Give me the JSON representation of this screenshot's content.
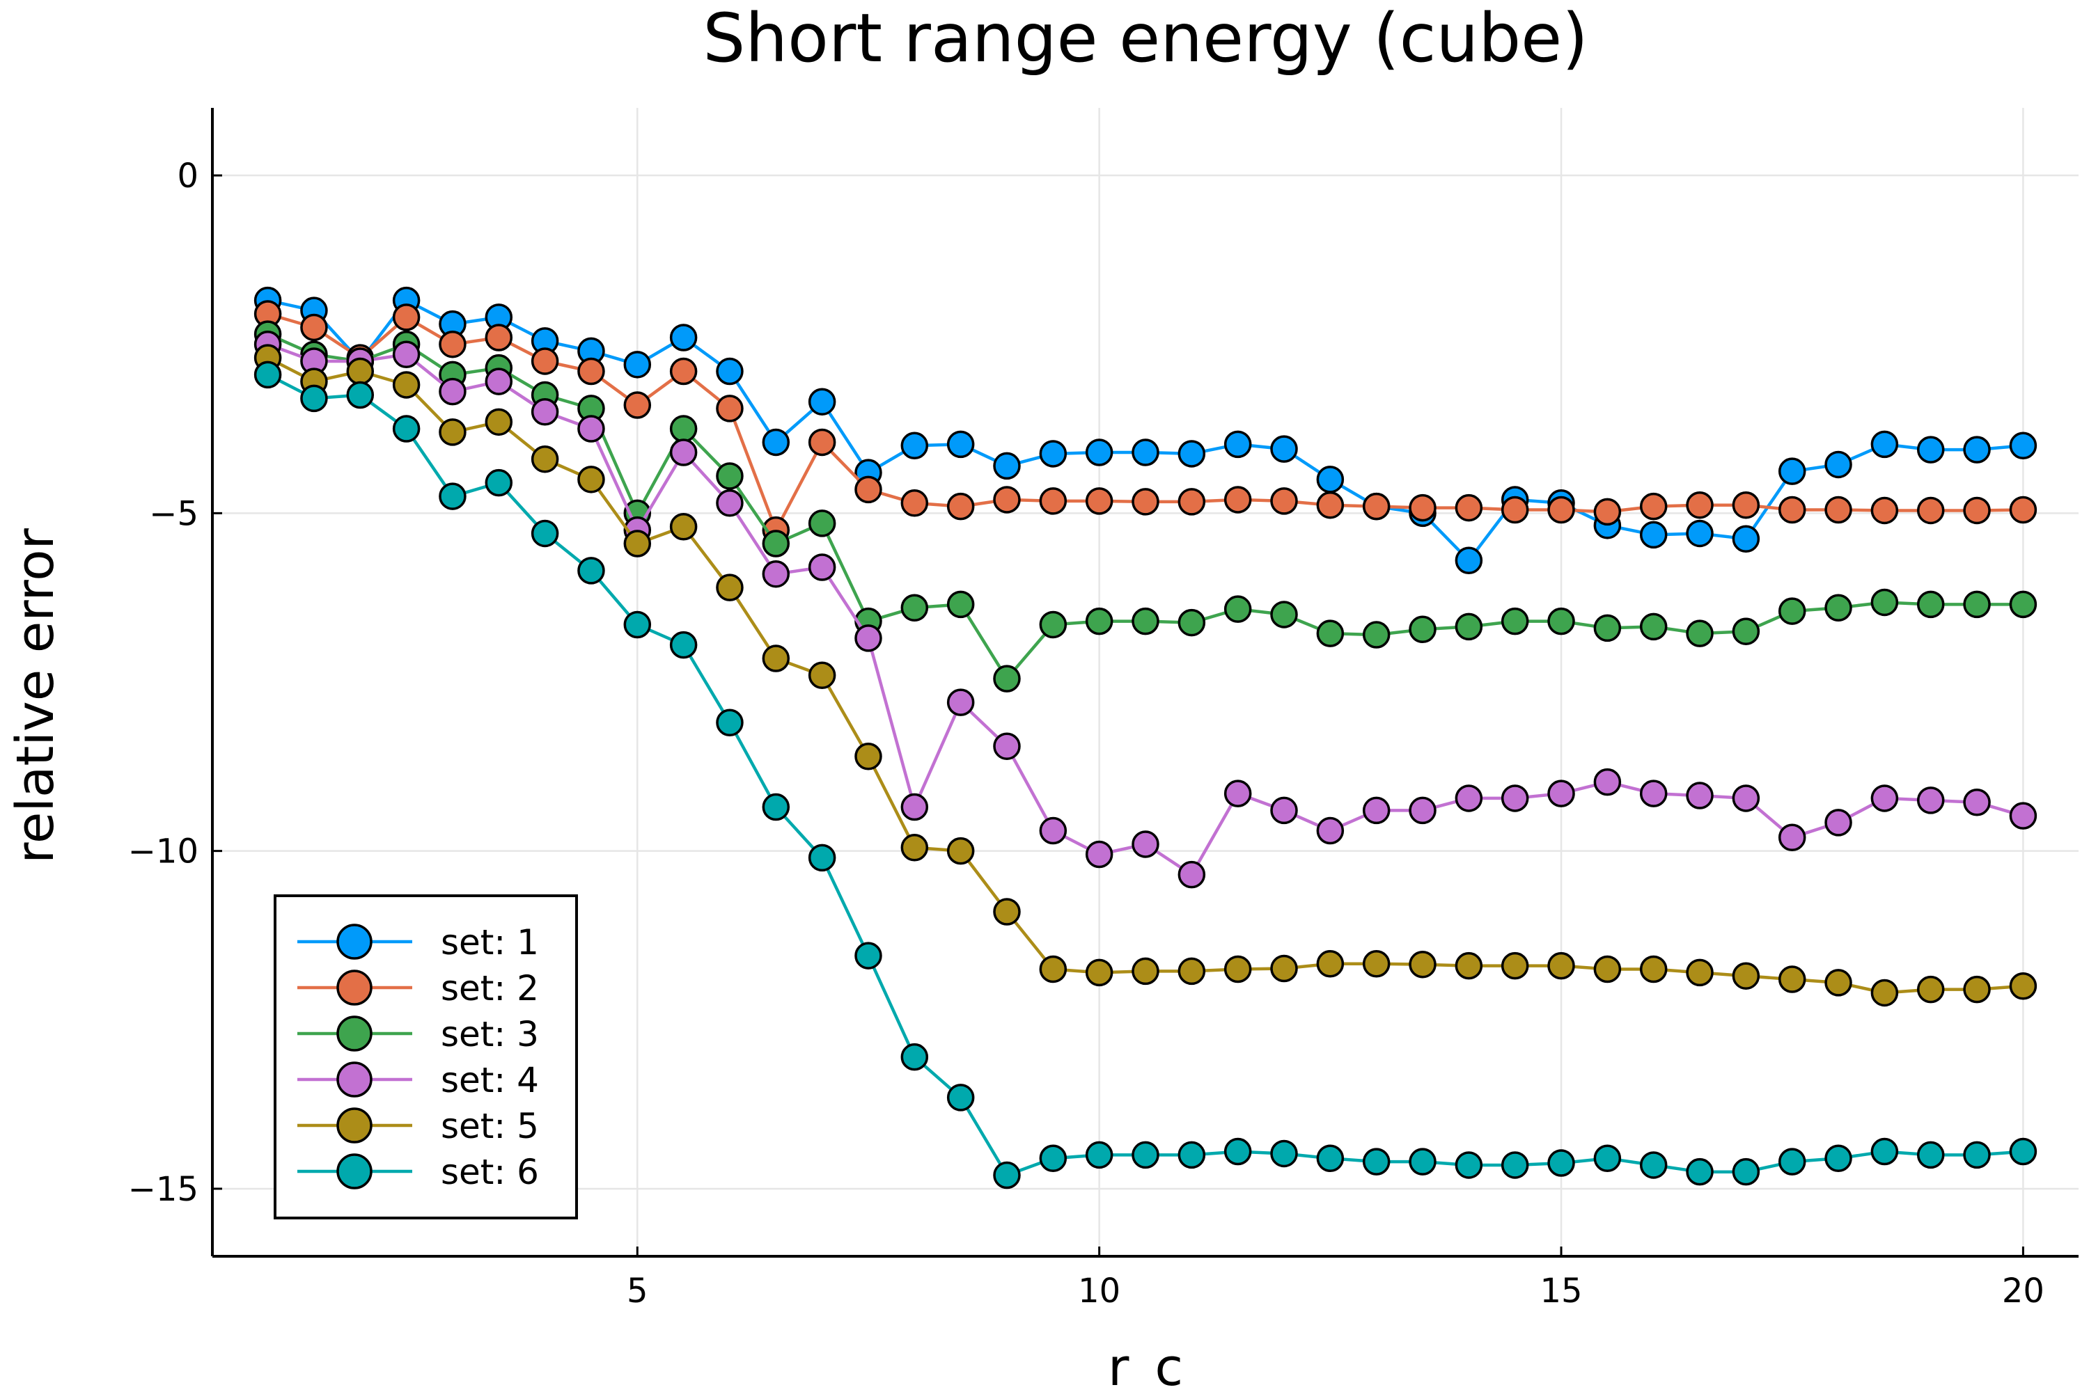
{
  "chart_data": {
    "type": "line",
    "title": "Short range energy (cube)",
    "xlabel": "r_c",
    "ylabel": "relative error",
    "xlim": [
      0.4,
      20.6
    ],
    "ylim": [
      -16,
      1
    ],
    "xticks": [
      5,
      10,
      15,
      20
    ],
    "xtick_labels": [
      "5",
      "10",
      "15",
      "20"
    ],
    "yticks": [
      0,
      -5,
      -10,
      -15
    ],
    "ytick_labels": [
      "0",
      "−5",
      "−10",
      "−15"
    ],
    "grid": true,
    "legend_position": "bottom-left",
    "markers": true,
    "x": [
      1.0,
      1.5,
      2.0,
      2.5,
      3.0,
      3.5,
      4.0,
      4.5,
      5.0,
      5.5,
      6.0,
      6.5,
      7.0,
      7.5,
      8.0,
      8.5,
      9.0,
      9.5,
      10.0,
      10.5,
      11.0,
      11.5,
      12.0,
      12.5,
      13.0,
      13.5,
      14.0,
      14.5,
      15.0,
      15.5,
      16.0,
      16.5,
      17.0,
      17.5,
      18.0,
      18.5,
      19.0,
      19.5,
      20.0
    ],
    "series": [
      {
        "name": "set: 1",
        "color": "#009AFA",
        "values": [
          -1.85,
          -2.0,
          -2.75,
          -1.85,
          -2.2,
          -2.1,
          -2.45,
          -2.6,
          -2.8,
          -2.4,
          -2.9,
          -3.95,
          -3.35,
          -4.4,
          -4.0,
          -3.98,
          -4.3,
          -4.12,
          -4.1,
          -4.1,
          -4.12,
          -3.98,
          -4.05,
          -4.5,
          -4.9,
          -5.0,
          -5.7,
          -4.8,
          -4.85,
          -5.18,
          -5.32,
          -5.3,
          -5.38,
          -4.38,
          -4.28,
          -3.98,
          -4.06,
          -4.06,
          -4.0
        ]
      },
      {
        "name": "set: 2",
        "color": "#E36F47",
        "values": [
          -2.05,
          -2.25,
          -2.7,
          -2.1,
          -2.5,
          -2.4,
          -2.75,
          -2.9,
          -3.4,
          -2.9,
          -3.45,
          -5.25,
          -3.95,
          -4.65,
          -4.85,
          -4.9,
          -4.8,
          -4.82,
          -4.82,
          -4.83,
          -4.83,
          -4.8,
          -4.82,
          -4.88,
          -4.9,
          -4.92,
          -4.92,
          -4.95,
          -4.95,
          -4.98,
          -4.9,
          -4.88,
          -4.88,
          -4.95,
          -4.95,
          -4.96,
          -4.96,
          -4.96,
          -4.95
        ]
      },
      {
        "name": "set: 3",
        "color": "#3EA44E",
        "values": [
          -2.35,
          -2.65,
          -2.75,
          -2.5,
          -2.95,
          -2.85,
          -3.25,
          -3.45,
          -5.0,
          -3.75,
          -4.45,
          -5.45,
          -5.15,
          -6.6,
          -6.4,
          -6.35,
          -7.45,
          -6.65,
          -6.6,
          -6.6,
          -6.62,
          -6.42,
          -6.5,
          -6.78,
          -6.8,
          -6.72,
          -6.68,
          -6.6,
          -6.6,
          -6.7,
          -6.68,
          -6.78,
          -6.75,
          -6.45,
          -6.4,
          -6.32,
          -6.35,
          -6.35,
          -6.35
        ]
      },
      {
        "name": "set: 4",
        "color": "#C271D2",
        "values": [
          -2.5,
          -2.75,
          -2.75,
          -2.65,
          -3.2,
          -3.05,
          -3.5,
          -3.75,
          -5.25,
          -4.1,
          -4.85,
          -5.9,
          -5.8,
          -6.85,
          -9.35,
          -7.8,
          -8.45,
          -9.7,
          -10.05,
          -9.9,
          -10.35,
          -9.15,
          -9.4,
          -9.7,
          -9.4,
          -9.4,
          -9.22,
          -9.22,
          -9.15,
          -8.98,
          -9.15,
          -9.18,
          -9.22,
          -9.8,
          -9.58,
          -9.22,
          -9.25,
          -9.28,
          -9.48
        ]
      },
      {
        "name": "set: 5",
        "color": "#AC8D18",
        "values": [
          -2.7,
          -3.05,
          -2.9,
          -3.1,
          -3.8,
          -3.65,
          -4.2,
          -4.5,
          -5.45,
          -5.2,
          -6.1,
          -7.15,
          -7.4,
          -8.6,
          -9.95,
          -10.0,
          -10.9,
          -11.75,
          -11.8,
          -11.78,
          -11.78,
          -11.75,
          -11.74,
          -11.67,
          -11.67,
          -11.68,
          -11.7,
          -11.7,
          -11.7,
          -11.75,
          -11.75,
          -11.8,
          -11.85,
          -11.9,
          -11.95,
          -12.1,
          -12.05,
          -12.05,
          -12.0
        ]
      },
      {
        "name": "set: 6",
        "color": "#00A9AD",
        "values": [
          -2.95,
          -3.3,
          -3.25,
          -3.75,
          -4.75,
          -4.55,
          -5.3,
          -5.85,
          -6.65,
          -6.95,
          -8.1,
          -9.35,
          -10.1,
          -11.55,
          -13.05,
          -13.65,
          -14.8,
          -14.55,
          -14.5,
          -14.5,
          -14.5,
          -14.45,
          -14.48,
          -14.55,
          -14.6,
          -14.6,
          -14.65,
          -14.65,
          -14.62,
          -14.55,
          -14.65,
          -14.75,
          -14.75,
          -14.6,
          -14.55,
          -14.45,
          -14.5,
          -14.5,
          -14.45
        ]
      }
    ]
  }
}
